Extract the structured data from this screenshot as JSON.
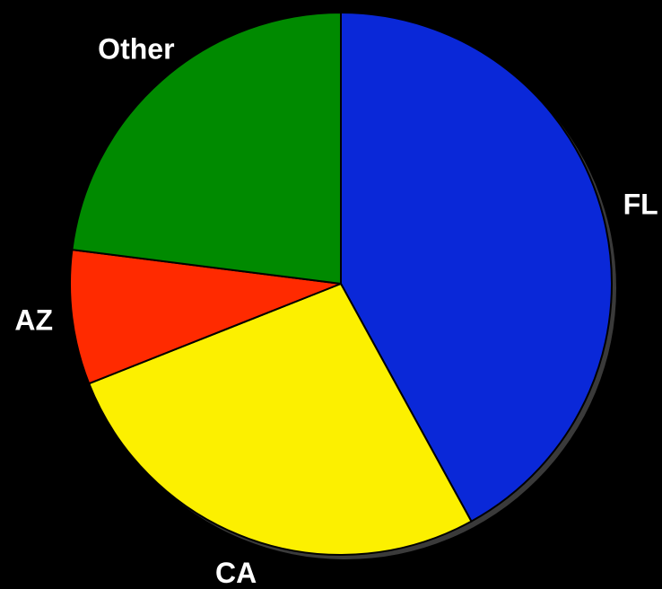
{
  "chart_data": {
    "type": "pie",
    "categories": [
      "FL",
      "CA",
      "AZ",
      "Other"
    ],
    "values": [
      42,
      27,
      8,
      23
    ],
    "colors": [
      "#0a28d8",
      "#fcf000",
      "#ff2a00",
      "#008a00"
    ],
    "start_angle": 0,
    "direction": "clockwise",
    "legend": false
  }
}
